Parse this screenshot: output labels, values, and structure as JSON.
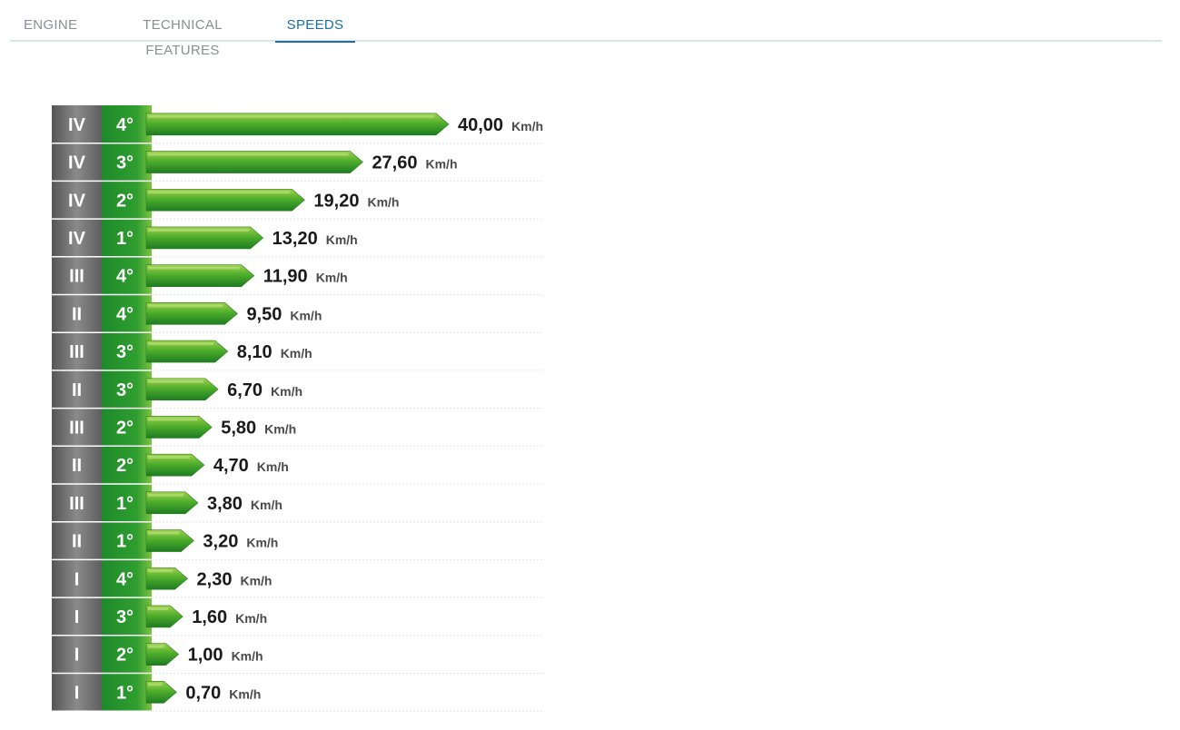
{
  "tabs": [
    {
      "label": "ENGINE",
      "active": false
    },
    {
      "label": "TECHNICAL FEATURES",
      "active": false
    },
    {
      "label": "SPEEDS",
      "active": true
    }
  ],
  "colors": {
    "accent": "#1b6fa6",
    "bar_green_dark": "#1f7a20",
    "bar_green_light": "#8cc63f",
    "range_gray": "#6b6b6b",
    "gear_green": "#2a9a2e"
  },
  "chart_data": {
    "type": "bar",
    "orientation": "horizontal",
    "unit": "Km/h",
    "rows": [
      {
        "range": "IV",
        "gear": "4°",
        "value": 40.0,
        "label": "40,00"
      },
      {
        "range": "IV",
        "gear": "3°",
        "value": 27.6,
        "label": "27,60"
      },
      {
        "range": "IV",
        "gear": "2°",
        "value": 19.2,
        "label": "19,20"
      },
      {
        "range": "IV",
        "gear": "1°",
        "value": 13.2,
        "label": "13,20"
      },
      {
        "range": "III",
        "gear": "4°",
        "value": 11.9,
        "label": "11,90"
      },
      {
        "range": "II",
        "gear": "4°",
        "value": 9.5,
        "label": "9,50"
      },
      {
        "range": "III",
        "gear": "3°",
        "value": 8.1,
        "label": "8,10"
      },
      {
        "range": "II",
        "gear": "3°",
        "value": 6.7,
        "label": "6,70"
      },
      {
        "range": "III",
        "gear": "2°",
        "value": 5.8,
        "label": "5,80"
      },
      {
        "range": "II",
        "gear": "2°",
        "value": 4.7,
        "label": "4,70"
      },
      {
        "range": "III",
        "gear": "1°",
        "value": 3.8,
        "label": "3,80"
      },
      {
        "range": "II",
        "gear": "1°",
        "value": 3.2,
        "label": "3,20"
      },
      {
        "range": "I",
        "gear": "4°",
        "value": 2.3,
        "label": "2,30"
      },
      {
        "range": "I",
        "gear": "3°",
        "value": 1.6,
        "label": "1,60"
      },
      {
        "range": "I",
        "gear": "2°",
        "value": 1.0,
        "label": "1,00"
      },
      {
        "range": "I",
        "gear": "1°",
        "value": 0.7,
        "label": "0,70"
      }
    ]
  }
}
